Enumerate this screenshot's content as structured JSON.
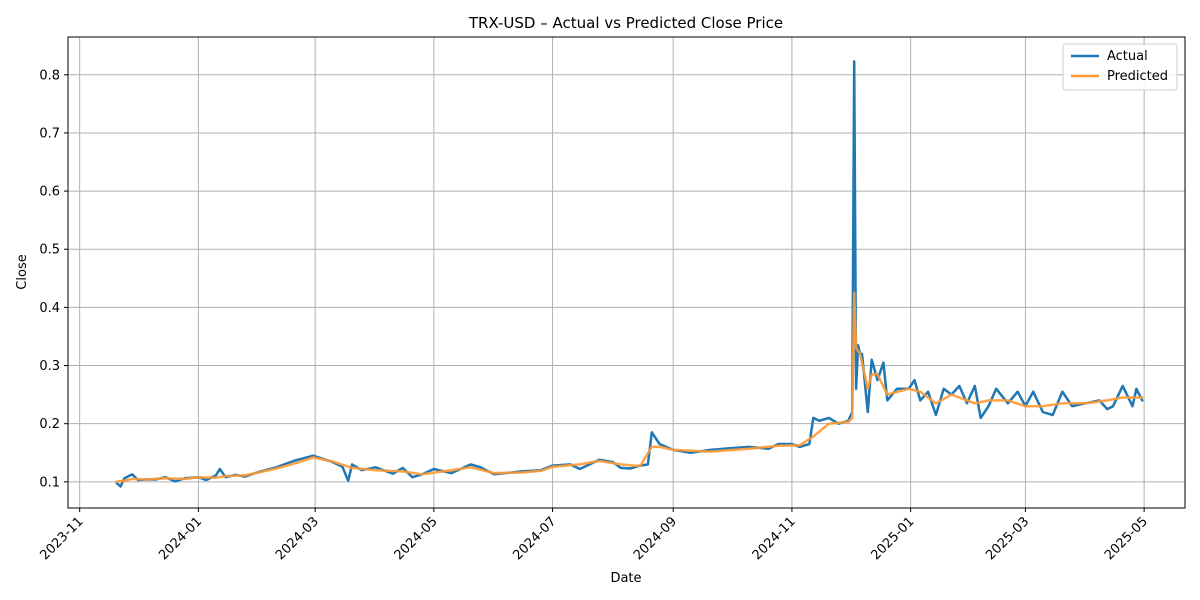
{
  "chart_data": {
    "type": "line",
    "title": "TRX-USD – Actual vs Predicted Close Price",
    "xlabel": "Date",
    "ylabel": "Close",
    "x_ticks": [
      "2023-11",
      "2024-01",
      "2024-03",
      "2024-05",
      "2024-07",
      "2024-09",
      "2024-11",
      "2025-01",
      "2025-03",
      "2025-05"
    ],
    "x_tick_dates": [
      "2023-11-01",
      "2024-01-01",
      "2024-03-01",
      "2024-05-01",
      "2024-07-01",
      "2024-09-01",
      "2024-11-01",
      "2025-01-01",
      "2025-03-01",
      "2025-05-01"
    ],
    "y_ticks": [
      "0.1",
      "0.2",
      "0.3",
      "0.4",
      "0.5",
      "0.6",
      "0.7",
      "0.8"
    ],
    "y_tick_values": [
      0.1,
      0.2,
      0.3,
      0.4,
      0.5,
      0.6,
      0.7,
      0.8
    ],
    "xlim": [
      "2023-10-26",
      "2025-05-22"
    ],
    "ylim": [
      0.055,
      0.865
    ],
    "grid": true,
    "legend_position": "top-right",
    "series": [
      {
        "name": "Actual",
        "color": "#1f77b4",
        "x": [
          "2023-11-20",
          "2023-11-22",
          "2023-11-24",
          "2023-11-28",
          "2023-12-01",
          "2023-12-05",
          "2023-12-10",
          "2023-12-15",
          "2023-12-20",
          "2023-12-25",
          "2024-01-01",
          "2024-01-05",
          "2024-01-10",
          "2024-01-12",
          "2024-01-15",
          "2024-01-20",
          "2024-01-25",
          "2024-02-01",
          "2024-02-10",
          "2024-02-20",
          "2024-02-29",
          "2024-03-10",
          "2024-03-15",
          "2024-03-18",
          "2024-03-20",
          "2024-03-25",
          "2024-04-01",
          "2024-04-10",
          "2024-04-15",
          "2024-04-20",
          "2024-04-25",
          "2024-05-01",
          "2024-05-10",
          "2024-05-20",
          "2024-05-25",
          "2024-06-01",
          "2024-06-15",
          "2024-06-25",
          "2024-07-01",
          "2024-07-10",
          "2024-07-15",
          "2024-07-25",
          "2024-08-01",
          "2024-08-05",
          "2024-08-10",
          "2024-08-15",
          "2024-08-19",
          "2024-08-21",
          "2024-08-25",
          "2024-09-01",
          "2024-09-10",
          "2024-09-20",
          "2024-10-01",
          "2024-10-10",
          "2024-10-20",
          "2024-10-25",
          "2024-11-01",
          "2024-11-05",
          "2024-11-10",
          "2024-11-12",
          "2024-11-15",
          "2024-11-20",
          "2024-11-25",
          "2024-11-30",
          "2024-12-02",
          "2024-12-03",
          "2024-12-04",
          "2024-12-05",
          "2024-12-06",
          "2024-12-07",
          "2024-12-10",
          "2024-12-12",
          "2024-12-15",
          "2024-12-18",
          "2024-12-20",
          "2024-12-25",
          "2024-12-31",
          "2025-01-03",
          "2025-01-06",
          "2025-01-10",
          "2025-01-14",
          "2025-01-18",
          "2025-01-22",
          "2025-01-26",
          "2025-01-30",
          "2025-02-03",
          "2025-02-06",
          "2025-02-10",
          "2025-02-14",
          "2025-02-20",
          "2025-02-25",
          "2025-03-01",
          "2025-03-05",
          "2025-03-10",
          "2025-03-15",
          "2025-03-20",
          "2025-03-25",
          "2025-04-01",
          "2025-04-08",
          "2025-04-12",
          "2025-04-15",
          "2025-04-20",
          "2025-04-25",
          "2025-04-27",
          "2025-04-30"
        ],
        "y": [
          0.098,
          0.092,
          0.106,
          0.113,
          0.103,
          0.104,
          0.104,
          0.108,
          0.101,
          0.106,
          0.108,
          0.103,
          0.111,
          0.122,
          0.108,
          0.112,
          0.109,
          0.117,
          0.125,
          0.137,
          0.145,
          0.134,
          0.126,
          0.102,
          0.13,
          0.12,
          0.125,
          0.114,
          0.124,
          0.108,
          0.113,
          0.122,
          0.115,
          0.13,
          0.125,
          0.113,
          0.118,
          0.12,
          0.128,
          0.13,
          0.122,
          0.138,
          0.134,
          0.124,
          0.123,
          0.128,
          0.13,
          0.185,
          0.165,
          0.155,
          0.15,
          0.155,
          0.158,
          0.16,
          0.157,
          0.165,
          0.165,
          0.16,
          0.165,
          0.21,
          0.205,
          0.21,
          0.2,
          0.205,
          0.22,
          0.823,
          0.26,
          0.335,
          0.32,
          0.32,
          0.22,
          0.31,
          0.275,
          0.305,
          0.24,
          0.26,
          0.26,
          0.275,
          0.24,
          0.255,
          0.215,
          0.26,
          0.25,
          0.265,
          0.235,
          0.265,
          0.21,
          0.23,
          0.26,
          0.235,
          0.255,
          0.23,
          0.255,
          0.22,
          0.215,
          0.255,
          0.23,
          0.235,
          0.24,
          0.225,
          0.23,
          0.265,
          0.23,
          0.26,
          0.24
        ]
      },
      {
        "name": "Predicted",
        "color": "#ff9933",
        "x": [
          "2023-11-20",
          "2023-11-24",
          "2023-11-28",
          "2023-12-05",
          "2023-12-15",
          "2023-12-25",
          "2024-01-01",
          "2024-01-10",
          "2024-01-15",
          "2024-01-25",
          "2024-02-10",
          "2024-02-20",
          "2024-02-29",
          "2024-03-10",
          "2024-03-20",
          "2024-04-01",
          "2024-04-15",
          "2024-04-25",
          "2024-05-10",
          "2024-05-20",
          "2024-06-01",
          "2024-06-15",
          "2024-06-25",
          "2024-07-01",
          "2024-07-15",
          "2024-07-25",
          "2024-08-05",
          "2024-08-15",
          "2024-08-21",
          "2024-08-25",
          "2024-09-01",
          "2024-09-20",
          "2024-10-10",
          "2024-10-25",
          "2024-11-05",
          "2024-11-12",
          "2024-11-20",
          "2024-11-30",
          "2024-12-02",
          "2024-12-03",
          "2024-12-04",
          "2024-12-06",
          "2024-12-10",
          "2024-12-12",
          "2024-12-15",
          "2024-12-20",
          "2024-12-31",
          "2025-01-06",
          "2025-01-14",
          "2025-01-22",
          "2025-02-03",
          "2025-02-10",
          "2025-02-20",
          "2025-03-01",
          "2025-03-10",
          "2025-03-20",
          "2025-04-01",
          "2025-04-12",
          "2025-04-20",
          "2025-04-27",
          "2025-04-30"
        ],
        "y": [
          0.1,
          0.102,
          0.105,
          0.104,
          0.106,
          0.105,
          0.108,
          0.107,
          0.11,
          0.111,
          0.123,
          0.132,
          0.142,
          0.135,
          0.124,
          0.12,
          0.118,
          0.113,
          0.12,
          0.125,
          0.115,
          0.116,
          0.119,
          0.126,
          0.13,
          0.136,
          0.13,
          0.127,
          0.16,
          0.16,
          0.155,
          0.152,
          0.157,
          0.162,
          0.163,
          0.178,
          0.2,
          0.203,
          0.21,
          0.425,
          0.33,
          0.32,
          0.26,
          0.285,
          0.285,
          0.25,
          0.26,
          0.255,
          0.235,
          0.25,
          0.235,
          0.24,
          0.24,
          0.23,
          0.23,
          0.235,
          0.235,
          0.24,
          0.245,
          0.245,
          0.245
        ]
      }
    ]
  }
}
